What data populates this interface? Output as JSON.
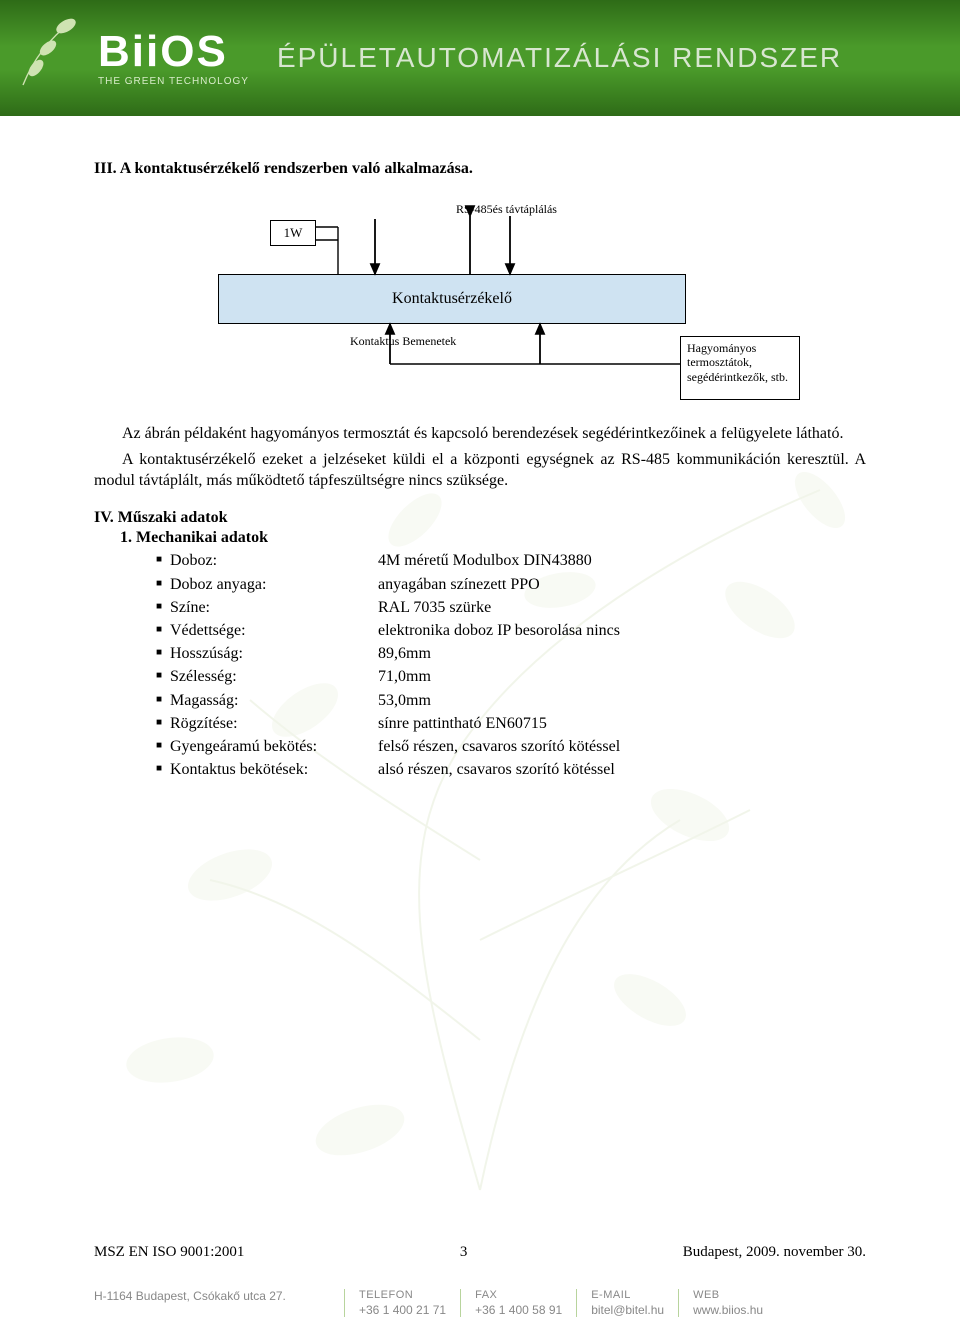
{
  "header": {
    "logo_main": "BiiOS",
    "logo_tag": "THE GREEN TECHNOLOGY",
    "title": "ÉPÜLETAUTOMATIZÁLÁSI RENDSZER",
    "bg_gradient": [
      "#2e6b17",
      "#4a9a2a"
    ],
    "text_color": "#d8e6d0"
  },
  "section3": {
    "title": "III.  A kontaktusérzékelő rendszerben való alkalmazása.",
    "diagram": {
      "box_1w": "1W",
      "rs_label": "RS-485és távtáplálás",
      "sensor_label": "Kontaktusérzékelő",
      "inputs_label": "Kontaktus Bemenetek",
      "thermo_label": "Hagyományos termosztátok, segédérintkezők, stb.",
      "sensor_bg": "#cfe3f2",
      "border": "#000000"
    },
    "para1": "Az ábrán példaként hagyományos termosztát és kapcsoló berendezések segédérintkezőinek a felügyelete látható.",
    "para2": "A kontaktusérzékelő ezeket a jelzéseket küldi el a központi egységnek az RS-485 kommunikáción keresztül. A modul távtáplált, más működtető tápfeszültségre nincs szüksége."
  },
  "section4": {
    "title": "IV.  Műszaki adatok",
    "subtitle": "1.  Mechanikai adatok",
    "specs": [
      {
        "label": "Doboz:",
        "value": "4M méretű Modulbox DIN43880"
      },
      {
        "label": "Doboz anyaga:",
        "value": "anyagában színezett PPO"
      },
      {
        "label": "Színe:",
        "value": "RAL 7035 szürke"
      },
      {
        "label": "Védettsége:",
        "value": "elektronika doboz IP besorolása nincs"
      },
      {
        "label": "Hosszúság:",
        "value": "89,6mm"
      },
      {
        "label": "Szélesség:",
        "value": "71,0mm"
      },
      {
        "label": "Magasság:",
        "value": "53,0mm"
      },
      {
        "label": "Rögzítése:",
        "value": "sínre pattintható EN60715"
      },
      {
        "label": "Gyengeáramú bekötés:",
        "value": "felső részen, csavaros szorító kötéssel"
      },
      {
        "label": "Kontaktus bekötések:",
        "value": "alsó részen, csavaros szorító kötéssel"
      }
    ]
  },
  "footer": {
    "iso": "MSZ EN ISO 9001:2001",
    "page_num": "3",
    "date": "Budapest, 2009. november 30.",
    "address": "H-1164 Budapest, Csókakő utca 27.",
    "cols": [
      {
        "hdr": "TELEFON",
        "val": "+36 1 400 21 71"
      },
      {
        "hdr": "FAX",
        "val": "+36 1 400 58 91"
      },
      {
        "hdr": "E-MAIL",
        "val": "bitel@bitel.hu"
      },
      {
        "hdr": "WEB",
        "val": "www.biios.hu"
      }
    ]
  },
  "colors": {
    "leaf_watermark": "#b8c98f"
  }
}
